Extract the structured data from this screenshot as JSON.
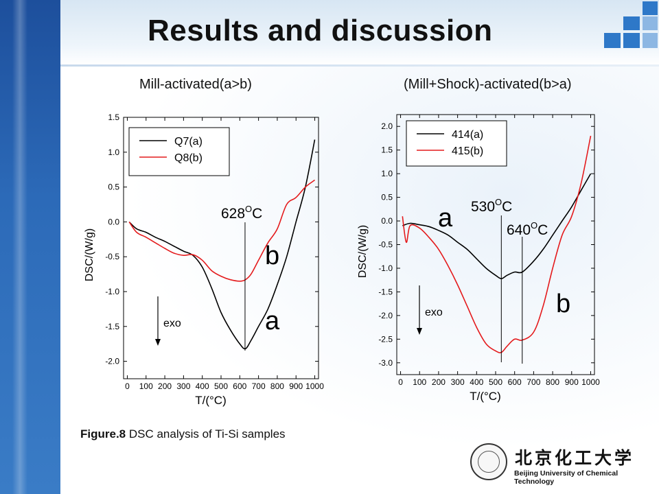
{
  "slide": {
    "title": "Results and discussion",
    "left_subtitle": "Mill-activated(a>b)",
    "right_subtitle": "(Mill+Shock)-activated(b>a)",
    "caption_bold": "Figure.8",
    "caption_text": " DSC analysis of Ti-Si samples",
    "logo_cn": "北京化工大学",
    "logo_en": "Beijing University of Chemical Technology"
  },
  "colors": {
    "series_a": "#000000",
    "series_b": "#e41a1c",
    "header_blue": "#1d4f9c",
    "square_blue": "#2e78c8"
  },
  "chart_data": [
    {
      "type": "line",
      "xlabel": "T/(°C)",
      "ylabel": "DSC/(W/g)",
      "xlim": [
        -20,
        1020
      ],
      "ylim": [
        -2.25,
        1.5
      ],
      "xticks": [
        0,
        100,
        200,
        300,
        400,
        500,
        600,
        700,
        800,
        900,
        1000
      ],
      "xtick_labels": [
        "0",
        "100",
        "200",
        "300",
        "400",
        "500",
        "600",
        "700",
        "800",
        "900",
        "1000"
      ],
      "yticks": [
        1.5,
        1.0,
        0.5,
        0.0,
        -0.5,
        -1.0,
        -1.5,
        -2.0
      ],
      "ytick_labels": [
        "1.5",
        "1.0",
        "0.5",
        "0.0",
        "-0.5",
        "-1.0",
        "-1.5",
        "-2.0"
      ],
      "legend": "top-left",
      "series": [
        {
          "name": "Q7(a)",
          "color": "#000000",
          "x": [
            10,
            50,
            100,
            150,
            200,
            250,
            300,
            350,
            400,
            450,
            500,
            550,
            600,
            630,
            660,
            700,
            750,
            800,
            850,
            900,
            950,
            1000
          ],
          "y": [
            0.0,
            -0.1,
            -0.15,
            -0.22,
            -0.28,
            -0.35,
            -0.42,
            -0.48,
            -0.65,
            -0.95,
            -1.3,
            -1.55,
            -1.75,
            -1.82,
            -1.7,
            -1.5,
            -1.25,
            -0.9,
            -0.5,
            0.0,
            0.5,
            1.18
          ]
        },
        {
          "name": "Q8(b)",
          "color": "#e41a1c",
          "x": [
            10,
            50,
            100,
            150,
            200,
            250,
            300,
            350,
            400,
            450,
            500,
            550,
            600,
            630,
            660,
            700,
            750,
            800,
            850,
            900,
            950,
            1000
          ],
          "y": [
            0.0,
            -0.15,
            -0.22,
            -0.3,
            -0.38,
            -0.45,
            -0.48,
            -0.47,
            -0.55,
            -0.7,
            -0.78,
            -0.83,
            -0.85,
            -0.83,
            -0.75,
            -0.55,
            -0.3,
            -0.1,
            0.25,
            0.35,
            0.5,
            0.6
          ]
        }
      ],
      "annotations": [
        {
          "text": "628",
          "sup": "O",
          "unit": "C",
          "x": 628
        },
        {
          "text": "b",
          "near": "red curve"
        },
        {
          "text": "a",
          "near": "black curve"
        },
        {
          "text": "exo"
        }
      ]
    },
    {
      "type": "line",
      "xlabel": "T/(°C)",
      "ylabel": "DSC/(W/g)",
      "xlim": [
        -20,
        1020
      ],
      "ylim": [
        -3.25,
        2.25
      ],
      "xticks": [
        0,
        100,
        200,
        300,
        400,
        500,
        600,
        700,
        800,
        900,
        1000
      ],
      "xtick_labels": [
        "0",
        "100",
        "200",
        "300",
        "400",
        "500",
        "600",
        "700",
        "800",
        "900",
        "1000"
      ],
      "yticks": [
        2.0,
        1.5,
        1.0,
        0.5,
        0.0,
        -0.5,
        -1.0,
        -1.5,
        -2.0,
        -2.5,
        -3.0
      ],
      "ytick_labels": [
        "2.0",
        "1.5",
        "1.0",
        "0.5",
        "0.0",
        "-0.5",
        "-1.0",
        "-1.5",
        "-2.0",
        "-2.5",
        "-3.0"
      ],
      "legend": "top-left",
      "series": [
        {
          "name": "414(a)",
          "color": "#000000",
          "x": [
            10,
            50,
            100,
            150,
            200,
            250,
            300,
            350,
            400,
            450,
            500,
            530,
            560,
            600,
            640,
            700,
            750,
            800,
            850,
            900,
            950,
            1000
          ],
          "y": [
            -0.1,
            -0.05,
            -0.08,
            -0.12,
            -0.2,
            -0.3,
            -0.45,
            -0.6,
            -0.8,
            -1.0,
            -1.15,
            -1.22,
            -1.15,
            -1.08,
            -1.08,
            -0.85,
            -0.6,
            -0.3,
            0.0,
            0.3,
            0.65,
            1.0
          ]
        },
        {
          "name": "415(b)",
          "color": "#e41a1c",
          "x": [
            10,
            30,
            50,
            100,
            150,
            200,
            250,
            300,
            350,
            400,
            450,
            500,
            530,
            560,
            600,
            640,
            700,
            750,
            800,
            850,
            900,
            950,
            1000
          ],
          "y": [
            0.1,
            -0.45,
            -0.1,
            -0.15,
            -0.35,
            -0.6,
            -0.95,
            -1.35,
            -1.8,
            -2.25,
            -2.6,
            -2.75,
            -2.78,
            -2.65,
            -2.5,
            -2.52,
            -2.35,
            -1.8,
            -1.0,
            -0.3,
            0.1,
            0.8,
            1.8
          ]
        }
      ],
      "annotations": [
        {
          "text": "530",
          "sup": "O",
          "unit": "C",
          "x": 530
        },
        {
          "text": "640",
          "sup": "O",
          "unit": "C",
          "x": 640
        },
        {
          "text": "a",
          "near": "black curve"
        },
        {
          "text": "b",
          "near": "red curve"
        },
        {
          "text": "exo"
        }
      ]
    }
  ]
}
